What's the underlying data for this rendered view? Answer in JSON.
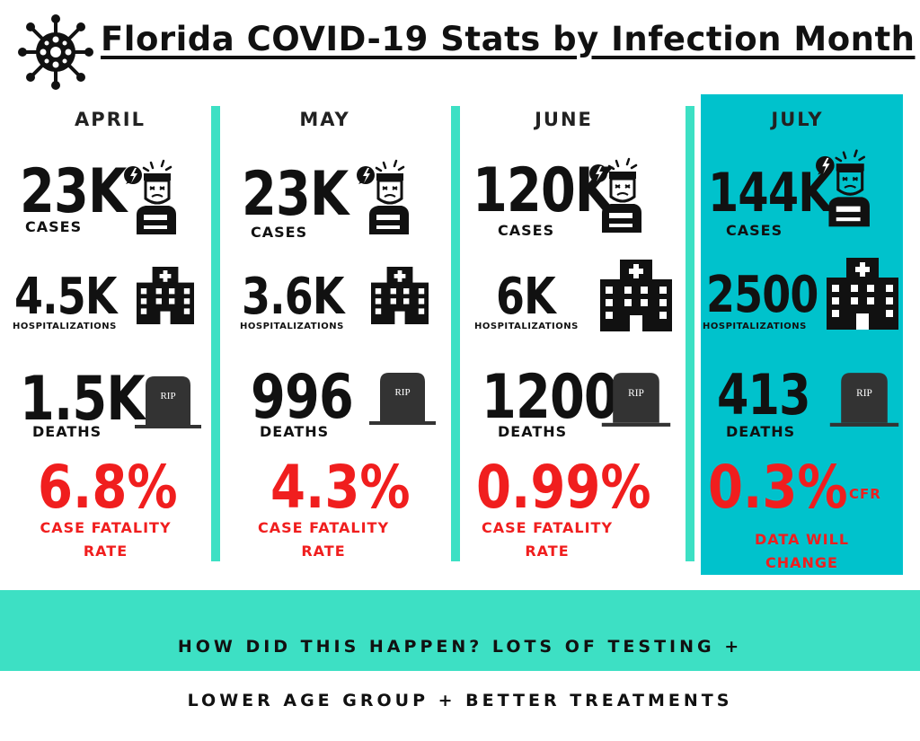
{
  "header": {
    "title": "Florida COVID-19 Stats by Infection Month",
    "icon": "virus-icon"
  },
  "colors": {
    "accent_teal": "#3de0c4",
    "highlight_cyan": "#00c2cc",
    "fatality_red": "#f01e1e"
  },
  "months": [
    {
      "name": "APRIL",
      "cases": "23K",
      "cases_label": "CASES",
      "hospitalizations": "4.5K",
      "hospitalizations_label": "HOSPITALIZATIONS",
      "deaths": "1.5K",
      "deaths_label": "DEATHS",
      "cfr": "6.8%",
      "cfr_label_1": "CASE FATALITY",
      "cfr_label_2": "RATE"
    },
    {
      "name": "MAY",
      "cases": "23K",
      "cases_label": "CASES",
      "hospitalizations": "3.6K",
      "hospitalizations_label": "HOSPITALIZATIONS",
      "deaths": "996",
      "deaths_label": "DEATHS",
      "cfr": "4.3%",
      "cfr_label_1": "CASE FATALITY",
      "cfr_label_2": "RATE"
    },
    {
      "name": "JUNE",
      "cases": "120K",
      "cases_label": "CASES",
      "hospitalizations": "6K",
      "hospitalizations_label": "HOSPITALIZATIONS",
      "deaths": "1200",
      "deaths_label": "DEATHS",
      "cfr": "0.99%",
      "cfr_label_1": "CASE FATALITY",
      "cfr_label_2": "RATE"
    },
    {
      "name": "JULY",
      "cases": "144K",
      "cases_label": "CASES",
      "hospitalizations": "2500",
      "hospitalizations_label": "HOSPITALIZATIONS",
      "deaths": "413",
      "deaths_label": "DEATHS",
      "cfr": "0.3%",
      "cfr_tag": "CFR",
      "cfr_label_1": "DATA WILL",
      "cfr_label_2": "CHANGE"
    }
  ],
  "icons": {
    "sick_person": "sick-person-icon",
    "hospital": "hospital-icon",
    "tombstone": "tombstone-icon",
    "tombstone_text": "RIP"
  },
  "footer": {
    "line1": "HOW DID THIS HAPPEN? LOTS OF TESTING +",
    "line2": "LOWER AGE GROUP + BETTER TREATMENTS"
  }
}
